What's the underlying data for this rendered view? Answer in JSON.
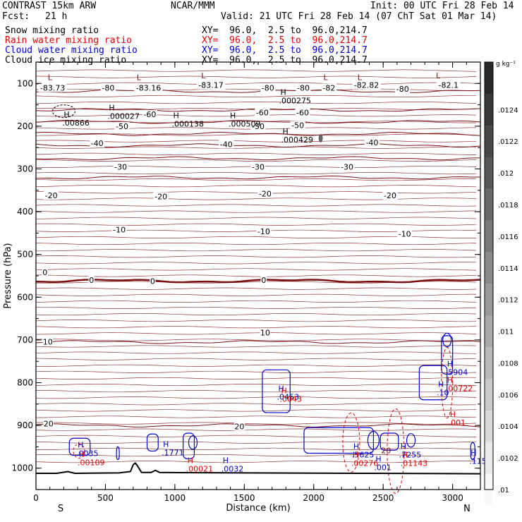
{
  "header": {
    "title": "CONTRAST 15km ARW",
    "org": "NCAR/MMM",
    "init": "Init: 00 UTC Fri 28 Feb 14",
    "fcst_label": "Fcst:",
    "fcst_value": "21 h",
    "valid": "Valid: 21 UTC Fri 28 Feb 14 (07 ChT Sat 01 Mar 14)",
    "fields": [
      {
        "name": "Snow mixing ratio",
        "xy": "XY=  96.0,  2.5 to  96.0,214.7"
      },
      {
        "name": "Rain water mixing ratio",
        "xy": "XY=  96.0,  2.5 to  96.0,214.7"
      },
      {
        "name": "Cloud water mixing ratio",
        "xy": "XY=  96.0,  2.5 to  96.0,214.7"
      },
      {
        "name": "Cloud ice mixing ratio",
        "xy": "XY=  96.0,  2.5 to  96.0,214.7"
      }
    ]
  },
  "chart_data": {
    "type": "contour",
    "xlabel": "Distance (km)",
    "ylabel": "Pressure (hPa)",
    "xlim": [
      0,
      3200
    ],
    "ylim": [
      1050,
      50
    ],
    "xticks": [
      0,
      500,
      1000,
      1500,
      2000,
      2500,
      3000
    ],
    "yticks": [
      100,
      200,
      300,
      400,
      500,
      600,
      700,
      800,
      900,
      1000
    ],
    "x_end_labels": {
      "left": "S",
      "right": "N"
    },
    "colors": {
      "temperature": "#7a1010",
      "rain": "#e00000",
      "cloud_water": "#0000d0",
      "terrain": "#000000"
    },
    "temperature_contours": [
      {
        "label": "-80",
        "p": 118
      },
      {
        "label": "-60",
        "p": 162
      },
      {
        "label": "-50",
        "p": 190
      },
      {
        "label": "-40",
        "p": 218
      },
      {
        "label": "-30",
        "p": 245
      },
      {
        "label": "-20",
        "p": 275
      },
      {
        "label": "-10",
        "p": 320
      },
      {
        "label": "0",
        "p": 562
      },
      {
        "label": "10",
        "p": 705
      },
      {
        "label": "20",
        "p": 900
      }
    ],
    "temperature_labels": [
      {
        "text": "-83.73",
        "x": 120,
        "p": 110
      },
      {
        "text": "-80",
        "x": 520,
        "p": 110
      },
      {
        "text": "-83.16",
        "x": 810,
        "p": 110
      },
      {
        "text": "-83.17",
        "x": 1260,
        "p": 104
      },
      {
        "text": "-80",
        "x": 1670,
        "p": 110
      },
      {
        "text": "-80",
        "x": 1925,
        "p": 110
      },
      {
        "text": "-82",
        "x": 2110,
        "p": 110
      },
      {
        "text": "-82.82",
        "x": 2380,
        "p": 104
      },
      {
        "text": "-80",
        "x": 2640,
        "p": 113
      },
      {
        "text": "-82.1",
        "x": 2970,
        "p": 104
      },
      {
        "text": "-60",
        "x": 820,
        "p": 172
      },
      {
        "text": "-60",
        "x": 1630,
        "p": 168
      },
      {
        "text": "-60",
        "x": 1920,
        "p": 168
      },
      {
        "text": "-50",
        "x": 620,
        "p": 200
      },
      {
        "text": "-50",
        "x": 1600,
        "p": 200
      },
      {
        "text": "-50",
        "x": 1885,
        "p": 198
      },
      {
        "text": "-40",
        "x": 440,
        "p": 240
      },
      {
        "text": "-40",
        "x": 1370,
        "p": 242
      },
      {
        "text": "-40",
        "x": 2420,
        "p": 238
      },
      {
        "text": "-30",
        "x": 610,
        "p": 295
      },
      {
        "text": "-30",
        "x": 1600,
        "p": 295
      },
      {
        "text": "-30",
        "x": 2240,
        "p": 295
      },
      {
        "text": "-20",
        "x": 110,
        "p": 362
      },
      {
        "text": "-20",
        "x": 900,
        "p": 364
      },
      {
        "text": "-20",
        "x": 1650,
        "p": 358
      },
      {
        "text": "-20",
        "x": 2550,
        "p": 362
      },
      {
        "text": "-10",
        "x": 600,
        "p": 442
      },
      {
        "text": "-10",
        "x": 1640,
        "p": 446
      },
      {
        "text": "-10",
        "x": 2655,
        "p": 452
      },
      {
        "text": "0",
        "x": 65,
        "p": 542
      },
      {
        "text": "0",
        "x": 400,
        "p": 560
      },
      {
        "text": "0",
        "x": 840,
        "p": 562
      },
      {
        "text": "0",
        "x": 1640,
        "p": 560
      },
      {
        "text": "10",
        "x": 85,
        "p": 704
      },
      {
        "text": "10",
        "x": 1650,
        "p": 683
      },
      {
        "text": "20",
        "x": 90,
        "p": 896
      },
      {
        "text": "20",
        "x": 1465,
        "p": 902
      }
    ],
    "extrema": [
      {
        "mark": "L",
        "x": 85,
        "p": 92,
        "color": "temperature"
      },
      {
        "mark": "L",
        "x": 725,
        "p": 92,
        "color": "temperature"
      },
      {
        "mark": "L",
        "x": 1190,
        "p": 88,
        "color": "temperature"
      },
      {
        "mark": "L",
        "x": 2070,
        "p": 92,
        "color": "temperature"
      },
      {
        "mark": "L",
        "x": 2315,
        "p": 92,
        "color": "temperature"
      },
      {
        "mark": "L",
        "x": 2880,
        "p": 88,
        "color": "temperature"
      },
      {
        "mark": "H",
        "x": 1760,
        "p": 127,
        "label": ".000275",
        "color": "black"
      },
      {
        "mark": "H",
        "x": 200,
        "p": 179,
        "label": ".00866",
        "color": "black"
      },
      {
        "mark": "H",
        "x": 525,
        "p": 163,
        "label": ".000027",
        "color": "black"
      },
      {
        "mark": "H",
        "x": 988,
        "p": 181,
        "label": ".000138",
        "color": "black"
      },
      {
        "mark": "H",
        "x": 1397,
        "p": 181,
        "label": ".000509",
        "color": "black"
      },
      {
        "mark": "H",
        "x": 1775,
        "p": 218,
        "label": ".000429",
        "color": "black"
      },
      {
        "mark": "H",
        "x": 1745,
        "p": 820,
        "label": ".0453",
        "color": "cloud_water"
      },
      {
        "mark": "H",
        "x": 1765,
        "p": 825,
        "label": ".0043",
        "color": "rain"
      },
      {
        "mark": "H",
        "x": 2960,
        "p": 762,
        "label": ".5904",
        "color": "cloud_water"
      },
      {
        "mark": "H",
        "x": 2960,
        "p": 800,
        "label": ".00722",
        "color": "rain"
      },
      {
        "mark": "H",
        "x": 2980,
        "p": 880,
        "label": ".001",
        "color": "rain"
      },
      {
        "mark": "H",
        "x": 2895,
        "p": 810,
        "label": ".10",
        "color": "cloud_water"
      },
      {
        "mark": "H",
        "x": 300,
        "p": 952,
        "label": ".0035",
        "color": "cloud_water"
      },
      {
        "mark": "H",
        "x": 310,
        "p": 973,
        "label": ".00109",
        "color": "rain"
      },
      {
        "mark": "H",
        "x": 915,
        "p": 950,
        "label": ".1771",
        "color": "cloud_water"
      },
      {
        "mark": "H",
        "x": 1090,
        "p": 988,
        "label": ".00021",
        "color": "rain"
      },
      {
        "mark": "H",
        "x": 1345,
        "p": 988,
        "label": ".0032",
        "color": "cloud_water"
      },
      {
        "mark": "H",
        "x": 2285,
        "p": 955,
        "label": ".5625",
        "color": "cloud_water"
      },
      {
        "mark": "H",
        "x": 2280,
        "p": 975,
        "label": ".00276",
        "color": "rain"
      },
      {
        "mark": "H",
        "x": 2445,
        "p": 985,
        "label": ".001",
        "color": "cloud_water"
      },
      {
        "mark": "H",
        "x": 2625,
        "p": 955,
        "label": ".7255",
        "color": "cloud_water"
      },
      {
        "mark": "H",
        "x": 2635,
        "p": 975,
        "label": ".01143",
        "color": "rain"
      },
      {
        "mark": "H",
        "x": 3130,
        "p": 970,
        "label": ".115",
        "color": "cloud_water"
      },
      {
        "mark": "",
        "x": 2495,
        "p": 965,
        "label": "20",
        "color": "temperature"
      }
    ],
    "terrain_p": [
      [
        0,
        1012
      ],
      [
        150,
        1012
      ],
      [
        230,
        1008
      ],
      [
        280,
        1012
      ],
      [
        600,
        1011
      ],
      [
        680,
        1008
      ],
      [
        700,
        992
      ],
      [
        715,
        988
      ],
      [
        730,
        994
      ],
      [
        760,
        1010
      ],
      [
        830,
        1010
      ],
      [
        860,
        1005
      ],
      [
        890,
        1010
      ],
      [
        1500,
        1011
      ],
      [
        2400,
        1012
      ],
      [
        3200,
        1013
      ]
    ],
    "colorbar": {
      "unit": "g kg⁻¹",
      "ticks": [
        ".0124",
        ".0122",
        ".012",
        ".0118",
        ".0116",
        ".0114",
        ".0112",
        ".011",
        ".0108",
        ".0106",
        ".0104",
        ".0102",
        ".01"
      ]
    }
  }
}
